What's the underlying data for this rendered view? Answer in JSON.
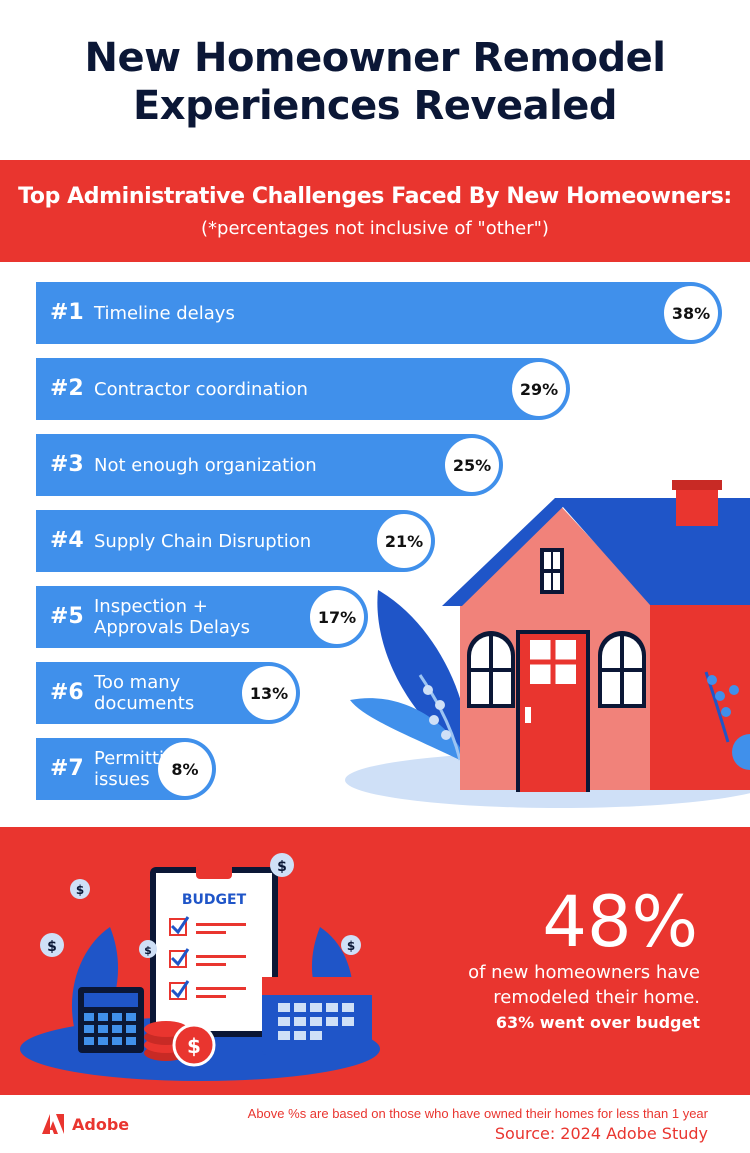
{
  "title_line1": "New Homeowner Remodel",
  "title_line2": "Experiences Revealed",
  "section": {
    "heading": "Top Administrative Challenges Faced By New Homeowners:",
    "subheading": "(*percentages not inclusive of \"other\")"
  },
  "chart_data": {
    "type": "bar",
    "orientation": "horizontal",
    "title": "Top Administrative Challenges Faced By New Homeowners:",
    "categories": [
      "Timeline delays",
      "Contractor coordination",
      "Not enough organization",
      "Supply Chain Disruption",
      "Inspection + Approvals Delays",
      "Too many documents",
      "Permitting issues"
    ],
    "label_lines": [
      [
        "Timeline delays"
      ],
      [
        "Contractor coordination"
      ],
      [
        "Not enough organization"
      ],
      [
        "Supply Chain Disruption"
      ],
      [
        "Inspection +",
        "Approvals Delays"
      ],
      [
        "Too many",
        "documents"
      ],
      [
        "Permitting",
        "issues"
      ]
    ],
    "ranks": [
      "#1",
      "#2",
      "#3",
      "#4",
      "#5",
      "#6",
      "#7"
    ],
    "values": [
      38,
      29,
      25,
      21,
      17,
      13,
      8
    ],
    "value_labels": [
      "38%",
      "29%",
      "25%",
      "21%",
      "17%",
      "13%",
      "8%"
    ],
    "bar_color": "#4090eb"
  },
  "budget_graphic": {
    "clipboard_label": "BUDGET"
  },
  "stat": {
    "value": "48%",
    "line1": "of new homeowners have",
    "line2": "remodeled their home.",
    "line3": "63% went over budget"
  },
  "footer": {
    "brand": "Adobe",
    "note": "Above %s are based on those who have owned their homes for less than 1 year",
    "source": "Source: 2024 Adobe Study"
  },
  "colors": {
    "red": "#e9352f",
    "blue": "#4090eb",
    "navy": "#0b1736",
    "house_wall": "#f1827a",
    "roof": "#1f55c8"
  }
}
